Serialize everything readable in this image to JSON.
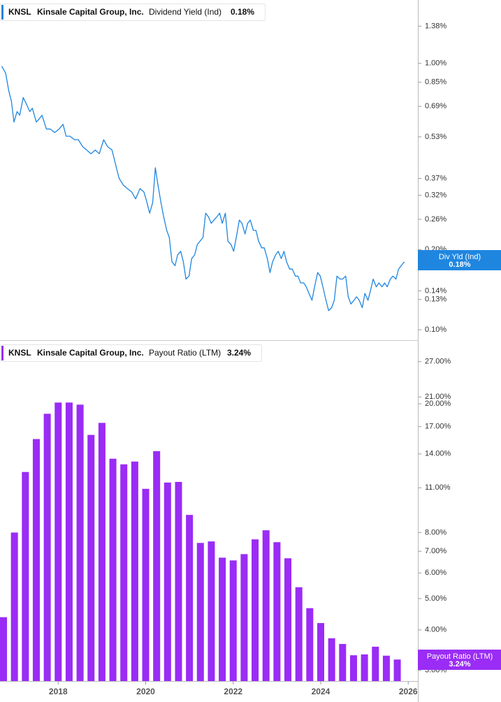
{
  "chart_data": [
    {
      "type": "line",
      "ticker": "KNSL",
      "company": "Kinsale Capital Group, Inc.",
      "latest": "0.18%",
      "badge_label": "Div Yld (Ind)",
      "badge_value": "0.18%",
      "yscale": "log",
      "grid": false,
      "xlim": [
        2016.67,
        2026.22
      ],
      "ylim": [
        0.0914,
        1.73
      ],
      "yticks": [
        {
          "value": 1.38,
          "label": "1.38%"
        },
        {
          "value": 1.0,
          "label": "1.00%"
        },
        {
          "value": 0.85,
          "label": "0.85%"
        },
        {
          "value": 0.69,
          "label": "0.69%"
        },
        {
          "value": 0.53,
          "label": "0.53%"
        },
        {
          "value": 0.37,
          "label": "0.37%"
        },
        {
          "value": 0.32,
          "label": "0.32%"
        },
        {
          "value": 0.26,
          "label": "0.26%"
        },
        {
          "value": 0.2,
          "label": "0.20%"
        },
        {
          "value": 0.14,
          "label": "0.14%"
        },
        {
          "value": 0.13,
          "label": "0.13%"
        },
        {
          "value": 0.1,
          "label": "0.10%"
        }
      ],
      "x": [
        2016.71,
        2016.8,
        2016.87,
        2016.93,
        2016.99,
        2017.06,
        2017.12,
        2017.2,
        2017.28,
        2017.35,
        2017.41,
        2017.5,
        2017.57,
        2017.63,
        2017.73,
        2017.82,
        2017.92,
        2018.02,
        2018.11,
        2018.18,
        2018.27,
        2018.37,
        2018.46,
        2018.56,
        2018.65,
        2018.75,
        2018.85,
        2018.94,
        2019.04,
        2019.13,
        2019.23,
        2019.33,
        2019.39,
        2019.49,
        2019.58,
        2019.68,
        2019.77,
        2019.87,
        2019.96,
        2020.03,
        2020.09,
        2020.16,
        2020.22,
        2020.28,
        2020.35,
        2020.41,
        2020.48,
        2020.54,
        2020.6,
        2020.67,
        2020.73,
        2020.8,
        2020.86,
        2020.92,
        2020.99,
        2021.05,
        2021.12,
        2021.18,
        2021.24,
        2021.31,
        2021.37,
        2021.43,
        2021.5,
        2021.56,
        2021.63,
        2021.69,
        2021.75,
        2021.82,
        2021.88,
        2021.95,
        2022.01,
        2022.07,
        2022.14,
        2022.2,
        2022.27,
        2022.33,
        2022.39,
        2022.46,
        2022.52,
        2022.58,
        2022.65,
        2022.71,
        2022.78,
        2022.84,
        2022.9,
        2022.97,
        2023.03,
        2023.1,
        2023.16,
        2023.22,
        2023.29,
        2023.35,
        2023.42,
        2023.48,
        2023.54,
        2023.61,
        2023.67,
        2023.73,
        2023.8,
        2023.86,
        2023.93,
        2023.99,
        2024.05,
        2024.12,
        2024.18,
        2024.25,
        2024.31,
        2024.37,
        2024.44,
        2024.5,
        2024.57,
        2024.63,
        2024.69,
        2024.76,
        2024.82,
        2024.88,
        2024.95,
        2025.01,
        2025.08,
        2025.14,
        2025.2,
        2025.27,
        2025.33,
        2025.4,
        2025.46,
        2025.52,
        2025.59,
        2025.65,
        2025.72,
        2025.78,
        2025.84,
        2025.91
      ],
      "series": [
        {
          "name": "Dividend Yield (Ind)",
          "color": "#1f86e0",
          "values": [
            0.976,
            0.919,
            0.79,
            0.722,
            0.602,
            0.659,
            0.639,
            0.744,
            0.7,
            0.659,
            0.679,
            0.602,
            0.62,
            0.639,
            0.567,
            0.567,
            0.55,
            0.567,
            0.591,
            0.533,
            0.533,
            0.517,
            0.517,
            0.487,
            0.473,
            0.458,
            0.473,
            0.458,
            0.517,
            0.487,
            0.473,
            0.406,
            0.371,
            0.349,
            0.339,
            0.329,
            0.31,
            0.339,
            0.329,
            0.3,
            0.274,
            0.3,
            0.406,
            0.349,
            0.3,
            0.266,
            0.236,
            0.222,
            0.18,
            0.174,
            0.191,
            0.197,
            0.18,
            0.155,
            0.159,
            0.185,
            0.191,
            0.209,
            0.215,
            0.222,
            0.274,
            0.266,
            0.251,
            0.258,
            0.266,
            0.274,
            0.251,
            0.274,
            0.215,
            0.209,
            0.197,
            0.222,
            0.258,
            0.251,
            0.229,
            0.251,
            0.258,
            0.236,
            0.236,
            0.215,
            0.203,
            0.203,
            0.185,
            0.164,
            0.18,
            0.191,
            0.197,
            0.185,
            0.197,
            0.18,
            0.169,
            0.169,
            0.159,
            0.159,
            0.15,
            0.15,
            0.145,
            0.137,
            0.129,
            0.145,
            0.164,
            0.159,
            0.145,
            0.129,
            0.118,
            0.121,
            0.129,
            0.159,
            0.155,
            0.155,
            0.159,
            0.133,
            0.125,
            0.129,
            0.133,
            0.129,
            0.121,
            0.137,
            0.129,
            0.141,
            0.155,
            0.145,
            0.15,
            0.145,
            0.15,
            0.145,
            0.155,
            0.159,
            0.155,
            0.169,
            0.174,
            0.18
          ]
        }
      ]
    },
    {
      "type": "bar",
      "ticker": "KNSL",
      "company": "Kinsale Capital Group, Inc.",
      "latest": "3.24%",
      "badge_value": "3.24%",
      "yscale": "log",
      "grid": false,
      "xlim": [
        2016.67,
        2026.22
      ],
      "xticks": [
        2018,
        2020,
        2022,
        2024,
        2026
      ],
      "ylim": [
        2.78,
        31.3
      ],
      "yticks": [
        {
          "value": 27,
          "label": "27.00%"
        },
        {
          "value": 21,
          "label": "21.00%"
        },
        {
          "value": 20,
          "label": "20.00%"
        },
        {
          "value": 17,
          "label": "17.00%"
        },
        {
          "value": 14,
          "label": "14.00%"
        },
        {
          "value": 11,
          "label": "11.00%"
        },
        {
          "value": 8,
          "label": "8.00%"
        },
        {
          "value": 7,
          "label": "7.00%"
        },
        {
          "value": 6,
          "label": "6.00%"
        },
        {
          "value": 5,
          "label": "5.00%"
        },
        {
          "value": 4,
          "label": "4.00%"
        },
        {
          "value": 3,
          "label": "3.00%"
        }
      ],
      "x": [
        2016.75,
        2017.0,
        2017.25,
        2017.5,
        2017.75,
        2018.0,
        2018.25,
        2018.5,
        2018.75,
        2019.0,
        2019.25,
        2019.5,
        2019.75,
        2020.0,
        2020.25,
        2020.5,
        2020.75,
        2021.0,
        2021.25,
        2021.5,
        2021.75,
        2022.0,
        2022.25,
        2022.5,
        2022.75,
        2023.0,
        2023.25,
        2023.5,
        2023.75,
        2024.0,
        2024.25,
        2024.5,
        2024.75,
        2025.0,
        2025.25,
        2025.5,
        2025.75
      ],
      "series": [
        {
          "name": "Payout Ratio (LTM)",
          "color": "#9a2cf5",
          "values": [
            4.38,
            8.0,
            12.31,
            15.56,
            18.63,
            20.18,
            20.18,
            19.88,
            16.03,
            17.46,
            13.53,
            13.0,
            13.26,
            10.92,
            14.28,
            11.42,
            11.47,
            9.07,
            7.43,
            7.51,
            6.69,
            6.56,
            6.86,
            7.62,
            8.13,
            7.47,
            6.66,
            5.42,
            4.67,
            4.2,
            3.77,
            3.62,
            3.34,
            3.36,
            3.55,
            3.33,
            3.24
          ]
        }
      ]
    }
  ]
}
